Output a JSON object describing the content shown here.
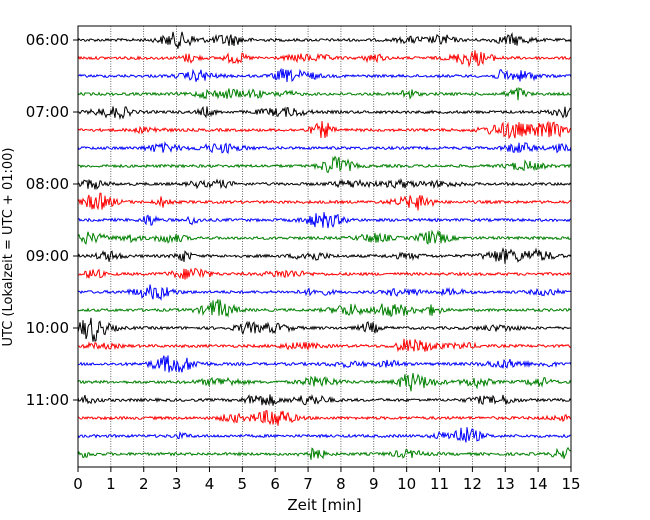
{
  "chart_data": {
    "type": "line",
    "title": "",
    "xlabel": "Zeit  [min]",
    "ylabel": "UTC (Lokalzeit = UTC + 01:00)",
    "xlim": [
      0,
      15
    ],
    "x_ticks": [
      0,
      1,
      2,
      3,
      4,
      5,
      6,
      7,
      8,
      9,
      10,
      11,
      12,
      13,
      14,
      15
    ],
    "y_tick_labels": [
      "06:00",
      "07:00",
      "08:00",
      "09:00",
      "10:00",
      "11:00"
    ],
    "grid": true,
    "trace_interval_minutes": 15,
    "colors": [
      "#000000",
      "#ff0000",
      "#0000ff",
      "#008000"
    ],
    "traces": [
      {
        "start": "06:00",
        "color": "#000000"
      },
      {
        "start": "06:15",
        "color": "#ff0000"
      },
      {
        "start": "06:30",
        "color": "#0000ff"
      },
      {
        "start": "06:45",
        "color": "#008000"
      },
      {
        "start": "07:00",
        "color": "#000000"
      },
      {
        "start": "07:15",
        "color": "#ff0000"
      },
      {
        "start": "07:30",
        "color": "#0000ff"
      },
      {
        "start": "07:45",
        "color": "#008000"
      },
      {
        "start": "08:00",
        "color": "#000000"
      },
      {
        "start": "08:15",
        "color": "#ff0000"
      },
      {
        "start": "08:30",
        "color": "#0000ff"
      },
      {
        "start": "08:45",
        "color": "#008000"
      },
      {
        "start": "09:00",
        "color": "#000000"
      },
      {
        "start": "09:15",
        "color": "#ff0000"
      },
      {
        "start": "09:30",
        "color": "#0000ff"
      },
      {
        "start": "09:45",
        "color": "#008000"
      },
      {
        "start": "10:00",
        "color": "#000000"
      },
      {
        "start": "10:15",
        "color": "#ff0000"
      },
      {
        "start": "10:30",
        "color": "#0000ff"
      },
      {
        "start": "10:45",
        "color": "#008000"
      },
      {
        "start": "11:00",
        "color": "#000000"
      },
      {
        "start": "11:15",
        "color": "#ff0000"
      },
      {
        "start": "11:30",
        "color": "#0000ff"
      },
      {
        "start": "11:45",
        "color": "#008000"
      }
    ]
  }
}
